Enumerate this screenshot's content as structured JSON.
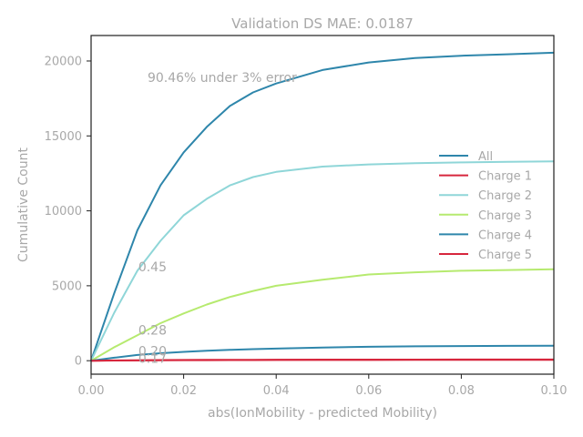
{
  "chart_data": {
    "type": "line",
    "title": "Validation DS MAE: 0.0187",
    "xlabel": "abs(IonMobility - predicted Mobility)",
    "ylabel": "Cumulative Count",
    "xlim": [
      0,
      0.1
    ],
    "ylim": [
      -900,
      21700
    ],
    "xticks": [
      0.0,
      0.02,
      0.04,
      0.06,
      0.08,
      0.1
    ],
    "xtick_labels": [
      "0.00",
      "0.02",
      "0.04",
      "0.06",
      "0.08",
      "0.10"
    ],
    "yticks": [
      0,
      5000,
      10000,
      15000,
      20000
    ],
    "ytick_labels": [
      "0",
      "5000",
      "10000",
      "15000",
      "20000"
    ],
    "grid": false,
    "legend_position": "center-right",
    "x": [
      0,
      0.005,
      0.01,
      0.015,
      0.02,
      0.025,
      0.03,
      0.035,
      0.04,
      0.05,
      0.06,
      0.07,
      0.08,
      0.09,
      0.1
    ],
    "series": [
      {
        "name": "All",
        "color": "#2e86ab",
        "values": [
          0,
          4500,
          8700,
          11700,
          13900,
          15600,
          17000,
          17900,
          18500,
          19400,
          19900,
          20200,
          20350,
          20450,
          20550
        ]
      },
      {
        "name": "Charge 1",
        "color": "#d7263d",
        "values": [
          0,
          15,
          30,
          40,
          48,
          54,
          58,
          62,
          65,
          70,
          73,
          75,
          77,
          78,
          80
        ]
      },
      {
        "name": "Charge 2",
        "color": "#8fd6d8",
        "values": [
          0,
          3200,
          6000,
          8000,
          9700,
          10800,
          11700,
          12250,
          12600,
          12950,
          13100,
          13180,
          13230,
          13270,
          13300
        ]
      },
      {
        "name": "Charge 3",
        "color": "#b6ea6f",
        "values": [
          0,
          900,
          1700,
          2500,
          3150,
          3750,
          4250,
          4650,
          5000,
          5400,
          5750,
          5900,
          6000,
          6050,
          6100
        ]
      },
      {
        "name": "Charge 4",
        "color": "#2e86ab",
        "values": [
          0,
          200,
          380,
          500,
          590,
          660,
          720,
          770,
          810,
          880,
          930,
          960,
          980,
          990,
          1000
        ]
      },
      {
        "name": "Charge 5",
        "color": "#d7263d",
        "values": [
          0,
          10,
          20,
          28,
          34,
          38,
          41,
          43,
          45,
          48,
          50,
          51,
          52,
          53,
          54
        ]
      }
    ],
    "annotations": [
      {
        "text": "90.46% under 3% error",
        "x": 0.0122,
        "y": 18600
      },
      {
        "text": "0.45",
        "x": 0.0102,
        "y": 5950
      },
      {
        "text": "0.28",
        "x": 0.0102,
        "y": 1750
      },
      {
        "text": "0.20",
        "x": 0.0102,
        "y": 350
      },
      {
        "text": "0.17",
        "x": 0.0102,
        "y": -150
      }
    ]
  }
}
